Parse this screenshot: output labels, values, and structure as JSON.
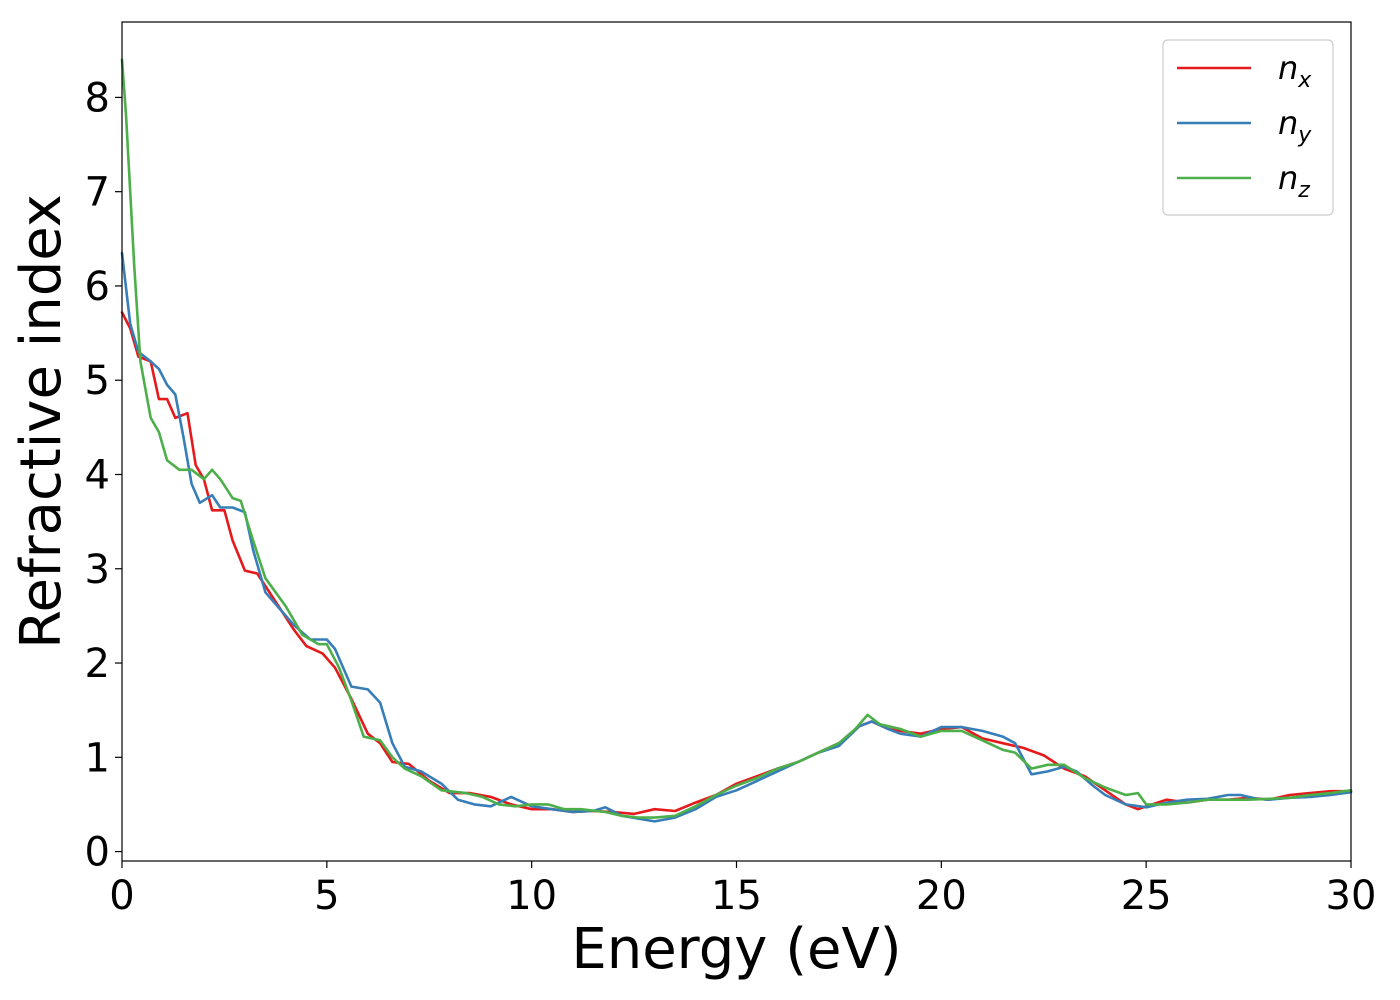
{
  "chart_data": {
    "type": "line",
    "title": "",
    "xlabel": "Energy (eV)",
    "ylabel": "Refractive index",
    "xlim": [
      0,
      30
    ],
    "ylim": [
      -0.1,
      8.8
    ],
    "xticks": [
      0,
      5,
      10,
      15,
      20,
      25,
      30
    ],
    "yticks": [
      0,
      1,
      2,
      3,
      4,
      5,
      6,
      7,
      8
    ],
    "legend_position": "top-right",
    "series": [
      {
        "name": "n_x",
        "label_base": "n",
        "label_sub": "x",
        "color": "#e41a1c",
        "points": [
          [
            0,
            5.72
          ],
          [
            0.2,
            5.55
          ],
          [
            0.4,
            5.25
          ],
          [
            0.7,
            5.2
          ],
          [
            0.9,
            4.8
          ],
          [
            1.1,
            4.8
          ],
          [
            1.3,
            4.6
          ],
          [
            1.6,
            4.65
          ],
          [
            1.8,
            4.1
          ],
          [
            2.0,
            3.95
          ],
          [
            2.2,
            3.62
          ],
          [
            2.5,
            3.62
          ],
          [
            2.7,
            3.3
          ],
          [
            3.0,
            2.98
          ],
          [
            3.3,
            2.95
          ],
          [
            3.6,
            2.75
          ],
          [
            3.9,
            2.55
          ],
          [
            4.2,
            2.35
          ],
          [
            4.5,
            2.18
          ],
          [
            4.9,
            2.1
          ],
          [
            5.2,
            1.95
          ],
          [
            5.6,
            1.62
          ],
          [
            6.0,
            1.25
          ],
          [
            6.3,
            1.15
          ],
          [
            6.6,
            0.95
          ],
          [
            7.0,
            0.93
          ],
          [
            7.5,
            0.75
          ],
          [
            8.0,
            0.62
          ],
          [
            8.5,
            0.62
          ],
          [
            9.0,
            0.58
          ],
          [
            9.5,
            0.5
          ],
          [
            10.0,
            0.45
          ],
          [
            10.5,
            0.45
          ],
          [
            11.0,
            0.42
          ],
          [
            11.5,
            0.43
          ],
          [
            12.0,
            0.42
          ],
          [
            12.5,
            0.4
          ],
          [
            13.0,
            0.45
          ],
          [
            13.5,
            0.43
          ],
          [
            14.0,
            0.52
          ],
          [
            14.5,
            0.6
          ],
          [
            15.0,
            0.72
          ],
          [
            15.5,
            0.8
          ],
          [
            16.0,
            0.88
          ],
          [
            16.5,
            0.95
          ],
          [
            17.0,
            1.05
          ],
          [
            17.5,
            1.15
          ],
          [
            18.0,
            1.33
          ],
          [
            18.3,
            1.38
          ],
          [
            18.7,
            1.3
          ],
          [
            19.0,
            1.28
          ],
          [
            19.5,
            1.25
          ],
          [
            20.0,
            1.3
          ],
          [
            20.5,
            1.32
          ],
          [
            21.0,
            1.2
          ],
          [
            21.5,
            1.15
          ],
          [
            22.0,
            1.1
          ],
          [
            22.5,
            1.02
          ],
          [
            23.0,
            0.88
          ],
          [
            23.5,
            0.8
          ],
          [
            24.0,
            0.65
          ],
          [
            24.5,
            0.5
          ],
          [
            24.8,
            0.45
          ],
          [
            25.0,
            0.48
          ],
          [
            25.5,
            0.55
          ],
          [
            26.0,
            0.52
          ],
          [
            26.5,
            0.55
          ],
          [
            27.0,
            0.55
          ],
          [
            27.5,
            0.57
          ],
          [
            28.0,
            0.55
          ],
          [
            28.5,
            0.6
          ],
          [
            29.0,
            0.62
          ],
          [
            29.5,
            0.64
          ],
          [
            30.0,
            0.64
          ]
        ]
      },
      {
        "name": "n_y",
        "label_base": "n",
        "label_sub": "y",
        "color": "#377eb8",
        "points": [
          [
            0,
            6.35
          ],
          [
            0.2,
            5.6
          ],
          [
            0.4,
            5.3
          ],
          [
            0.7,
            5.2
          ],
          [
            0.9,
            5.12
          ],
          [
            1.1,
            4.95
          ],
          [
            1.3,
            4.85
          ],
          [
            1.5,
            4.4
          ],
          [
            1.7,
            3.9
          ],
          [
            1.9,
            3.7
          ],
          [
            2.2,
            3.78
          ],
          [
            2.4,
            3.65
          ],
          [
            2.7,
            3.65
          ],
          [
            3.0,
            3.6
          ],
          [
            3.2,
            3.2
          ],
          [
            3.5,
            2.75
          ],
          [
            3.8,
            2.6
          ],
          [
            4.2,
            2.4
          ],
          [
            4.6,
            2.25
          ],
          [
            5.0,
            2.25
          ],
          [
            5.2,
            2.15
          ],
          [
            5.6,
            1.75
          ],
          [
            6.0,
            1.72
          ],
          [
            6.3,
            1.58
          ],
          [
            6.6,
            1.15
          ],
          [
            6.9,
            0.9
          ],
          [
            7.3,
            0.85
          ],
          [
            7.8,
            0.72
          ],
          [
            8.2,
            0.55
          ],
          [
            8.6,
            0.5
          ],
          [
            9.0,
            0.48
          ],
          [
            9.5,
            0.58
          ],
          [
            10.0,
            0.48
          ],
          [
            10.5,
            0.45
          ],
          [
            11.0,
            0.42
          ],
          [
            11.5,
            0.43
          ],
          [
            11.8,
            0.47
          ],
          [
            12.2,
            0.38
          ],
          [
            12.6,
            0.35
          ],
          [
            13.0,
            0.32
          ],
          [
            13.5,
            0.36
          ],
          [
            14.0,
            0.45
          ],
          [
            14.5,
            0.58
          ],
          [
            15.0,
            0.65
          ],
          [
            15.5,
            0.75
          ],
          [
            16.0,
            0.85
          ],
          [
            16.5,
            0.95
          ],
          [
            17.0,
            1.05
          ],
          [
            17.5,
            1.12
          ],
          [
            18.0,
            1.33
          ],
          [
            18.3,
            1.38
          ],
          [
            18.7,
            1.3
          ],
          [
            19.0,
            1.25
          ],
          [
            19.5,
            1.22
          ],
          [
            20.0,
            1.32
          ],
          [
            20.5,
            1.32
          ],
          [
            21.0,
            1.28
          ],
          [
            21.5,
            1.22
          ],
          [
            21.8,
            1.15
          ],
          [
            22.2,
            0.82
          ],
          [
            22.6,
            0.85
          ],
          [
            23.0,
            0.9
          ],
          [
            23.3,
            0.85
          ],
          [
            23.7,
            0.7
          ],
          [
            24.0,
            0.6
          ],
          [
            24.5,
            0.5
          ],
          [
            25.0,
            0.47
          ],
          [
            25.5,
            0.52
          ],
          [
            26.0,
            0.55
          ],
          [
            26.5,
            0.56
          ],
          [
            27.0,
            0.6
          ],
          [
            27.3,
            0.6
          ],
          [
            27.7,
            0.56
          ],
          [
            28.0,
            0.55
          ],
          [
            28.5,
            0.57
          ],
          [
            29.0,
            0.58
          ],
          [
            29.5,
            0.6
          ],
          [
            30.0,
            0.63
          ]
        ]
      },
      {
        "name": "n_z",
        "label_base": "n",
        "label_sub": "z",
        "color": "#4daf4a",
        "points": [
          [
            0,
            8.4
          ],
          [
            0.1,
            7.8
          ],
          [
            0.3,
            6.2
          ],
          [
            0.45,
            5.2
          ],
          [
            0.7,
            4.6
          ],
          [
            0.9,
            4.45
          ],
          [
            1.1,
            4.15
          ],
          [
            1.4,
            4.05
          ],
          [
            1.7,
            4.05
          ],
          [
            2.0,
            3.95
          ],
          [
            2.2,
            4.05
          ],
          [
            2.4,
            3.95
          ],
          [
            2.7,
            3.75
          ],
          [
            2.9,
            3.72
          ],
          [
            3.2,
            3.3
          ],
          [
            3.5,
            2.9
          ],
          [
            4.0,
            2.6
          ],
          [
            4.4,
            2.3
          ],
          [
            4.8,
            2.2
          ],
          [
            5.0,
            2.2
          ],
          [
            5.3,
            1.95
          ],
          [
            5.6,
            1.6
          ],
          [
            5.9,
            1.22
          ],
          [
            6.3,
            1.18
          ],
          [
            6.6,
            1.0
          ],
          [
            6.9,
            0.88
          ],
          [
            7.3,
            0.8
          ],
          [
            7.8,
            0.65
          ],
          [
            8.4,
            0.62
          ],
          [
            8.8,
            0.58
          ],
          [
            9.2,
            0.5
          ],
          [
            9.6,
            0.48
          ],
          [
            10.0,
            0.5
          ],
          [
            10.4,
            0.5
          ],
          [
            10.8,
            0.45
          ],
          [
            11.2,
            0.45
          ],
          [
            11.8,
            0.42
          ],
          [
            12.2,
            0.38
          ],
          [
            12.6,
            0.36
          ],
          [
            13.0,
            0.36
          ],
          [
            13.5,
            0.38
          ],
          [
            14.0,
            0.48
          ],
          [
            14.5,
            0.6
          ],
          [
            15.0,
            0.7
          ],
          [
            15.5,
            0.78
          ],
          [
            16.0,
            0.88
          ],
          [
            16.5,
            0.95
          ],
          [
            17.0,
            1.05
          ],
          [
            17.5,
            1.15
          ],
          [
            17.9,
            1.3
          ],
          [
            18.2,
            1.45
          ],
          [
            18.5,
            1.35
          ],
          [
            19.0,
            1.3
          ],
          [
            19.5,
            1.22
          ],
          [
            20.0,
            1.28
          ],
          [
            20.5,
            1.28
          ],
          [
            21.0,
            1.18
          ],
          [
            21.5,
            1.08
          ],
          [
            21.8,
            1.05
          ],
          [
            22.2,
            0.88
          ],
          [
            22.6,
            0.92
          ],
          [
            23.0,
            0.92
          ],
          [
            23.5,
            0.78
          ],
          [
            24.0,
            0.68
          ],
          [
            24.5,
            0.6
          ],
          [
            24.8,
            0.62
          ],
          [
            25.0,
            0.5
          ],
          [
            25.5,
            0.5
          ],
          [
            26.0,
            0.52
          ],
          [
            26.5,
            0.55
          ],
          [
            27.0,
            0.55
          ],
          [
            27.5,
            0.55
          ],
          [
            28.0,
            0.56
          ],
          [
            28.5,
            0.57
          ],
          [
            29.0,
            0.6
          ],
          [
            29.5,
            0.62
          ],
          [
            30.0,
            0.65
          ]
        ]
      }
    ]
  }
}
